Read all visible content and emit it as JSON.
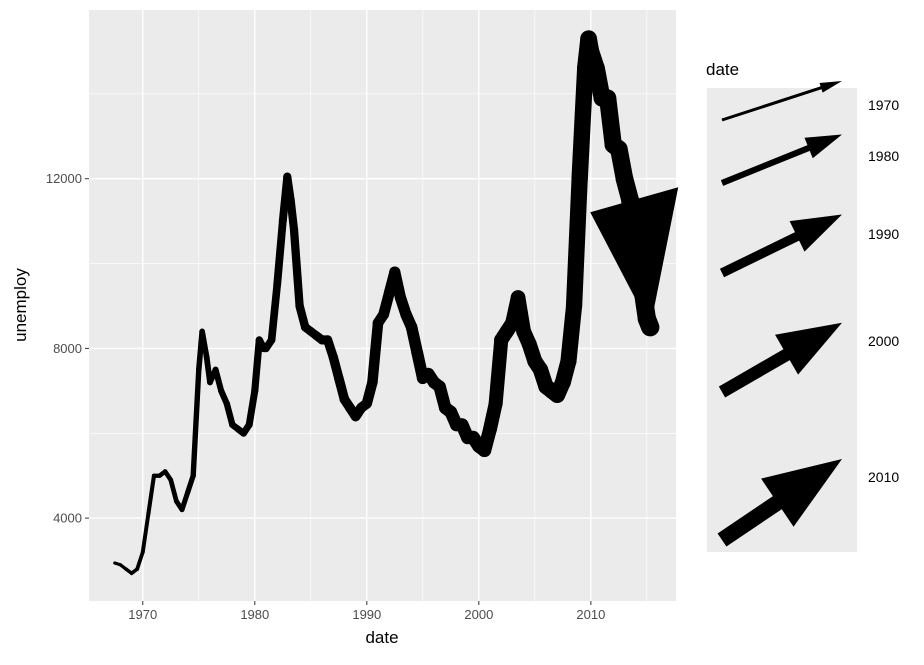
{
  "chart_data": {
    "type": "line",
    "title": "",
    "xlabel": "date",
    "ylabel": "unemploy",
    "xlim": [
      1965.2,
      2017.6
    ],
    "ylim": [
      2047,
      15976
    ],
    "x_ticks": [
      1970,
      1980,
      1990,
      2000,
      2010
    ],
    "x_tick_labels": [
      "1970",
      "1980",
      "1990",
      "2000",
      "2010"
    ],
    "y_ticks": [
      4000,
      8000,
      12000
    ],
    "y_tick_labels": [
      "4000",
      "8000",
      "12000"
    ],
    "grid": true,
    "linewidth_mapped_to": "date",
    "arrows": true,
    "colors": {
      "line": "#000000",
      "panel": "#ebebeb",
      "grid": "#ffffff"
    },
    "legend": {
      "title": "date",
      "placement": "right",
      "entries": [
        "1970",
        "1980",
        "1990",
        "2000",
        "2010"
      ]
    },
    "x": [
      1967.5,
      1968,
      1968.5,
      1969,
      1969.5,
      1970,
      1970.5,
      1971,
      1971.5,
      1972,
      1972.5,
      1973,
      1973.5,
      1974,
      1974.5,
      1975,
      1975.3,
      1975.7,
      1976,
      1976.5,
      1977,
      1977.5,
      1978,
      1978.5,
      1979,
      1979.5,
      1980,
      1980.4,
      1980.8,
      1981,
      1981.5,
      1982,
      1982.5,
      1982.9,
      1983.2,
      1983.5,
      1984,
      1984.5,
      1985,
      1985.5,
      1986,
      1986.5,
      1987,
      1987.5,
      1988,
      1988.5,
      1989,
      1989.5,
      1990,
      1990.5,
      1991,
      1991.5,
      1992,
      1992.5,
      1993,
      1993.5,
      1994,
      1994.5,
      1995,
      1995.5,
      1996,
      1996.5,
      1997,
      1997.5,
      1998,
      1998.5,
      1999,
      1999.5,
      2000,
      2000.5,
      2001,
      2001.5,
      2002,
      2002.5,
      2003,
      2003.5,
      2004,
      2004.5,
      2005,
      2005.5,
      2006,
      2006.5,
      2007,
      2007.5,
      2008,
      2008.5,
      2009,
      2009.5,
      2009.8,
      2010,
      2010.5,
      2011,
      2011.5,
      2012,
      2012.5,
      2013,
      2013.5,
      2014,
      2014.5,
      2015,
      2015.3
    ],
    "y": [
      2944,
      2900,
      2800,
      2700,
      2800,
      3200,
      4100,
      5000,
      5000,
      5100,
      4900,
      4400,
      4200,
      4600,
      5000,
      7500,
      8400,
      7800,
      7200,
      7500,
      7000,
      6700,
      6200,
      6100,
      6000,
      6200,
      7000,
      8200,
      8000,
      8000,
      8200,
      9500,
      11000,
      12050,
      11500,
      10800,
      9000,
      8500,
      8400,
      8300,
      8200,
      8200,
      7800,
      7300,
      6800,
      6600,
      6400,
      6600,
      6700,
      7200,
      8600,
      8800,
      9300,
      9800,
      9200,
      8800,
      8500,
      7900,
      7300,
      7400,
      7200,
      7100,
      6600,
      6500,
      6200,
      6200,
      5900,
      5900,
      5700,
      5600,
      6100,
      6700,
      8200,
      8400,
      8600,
      9200,
      8400,
      8100,
      7700,
      7500,
      7100,
      7000,
      6900,
      7200,
      7700,
      9000,
      12000,
      14600,
      15300,
      15000,
      14600,
      13900,
      13900,
      12800,
      12700,
      12000,
      11500,
      10300,
      9600,
      8700,
      8500
    ]
  }
}
